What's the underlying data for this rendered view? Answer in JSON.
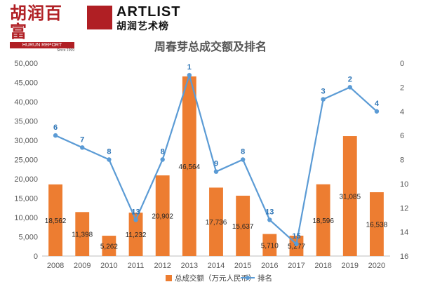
{
  "logos": {
    "hurun_cn": "胡润百富",
    "hurun_report": "HURUN REPORT",
    "hurun_since": "Since 1999",
    "artlist_en": "ARTLIST",
    "artlist_cn": "胡润艺术榜"
  },
  "colors": {
    "bar": "#ed7d31",
    "line": "#5b9bd5",
    "rank_label": "#2e75b6"
  },
  "chart_data": {
    "type": "bar+line",
    "title": "周春芽总成交额及排名",
    "categories": [
      "2008",
      "2009",
      "2010",
      "2011",
      "2012",
      "2013",
      "2014",
      "2015",
      "2016",
      "2017",
      "2018",
      "2019",
      "2020"
    ],
    "series": [
      {
        "name": "总成交额（万元人民币）",
        "type": "bar",
        "axis": "left",
        "values": [
          18562,
          11398,
          5262,
          11232,
          20902,
          46564,
          17736,
          15637,
          5710,
          5277,
          18596,
          31085,
          16538
        ],
        "labels": [
          "18,562",
          "11,398",
          "5,262",
          "11,232",
          "20,902",
          "46,564",
          "17,736",
          "15,637",
          "5,710",
          "5,277",
          "18,596",
          "31,085",
          "16,538"
        ]
      },
      {
        "name": "排名",
        "type": "line",
        "axis": "right",
        "values": [
          6,
          7,
          8,
          13,
          8,
          1,
          9,
          8,
          13,
          15,
          3,
          2,
          4
        ]
      }
    ],
    "y_left": {
      "min": 0,
      "max": 50000,
      "step": 5000,
      "ticks": [
        "0",
        "5,000",
        "10,000",
        "15,000",
        "20,000",
        "25,000",
        "30,000",
        "35,000",
        "40,000",
        "45,000",
        "50,000"
      ]
    },
    "y_right": {
      "min": 0,
      "max": 16,
      "step": 2,
      "inverted": true,
      "ticks": [
        "0",
        "2",
        "4",
        "6",
        "8",
        "10",
        "12",
        "14",
        "16"
      ]
    },
    "legend": {
      "position": "bottom"
    }
  }
}
